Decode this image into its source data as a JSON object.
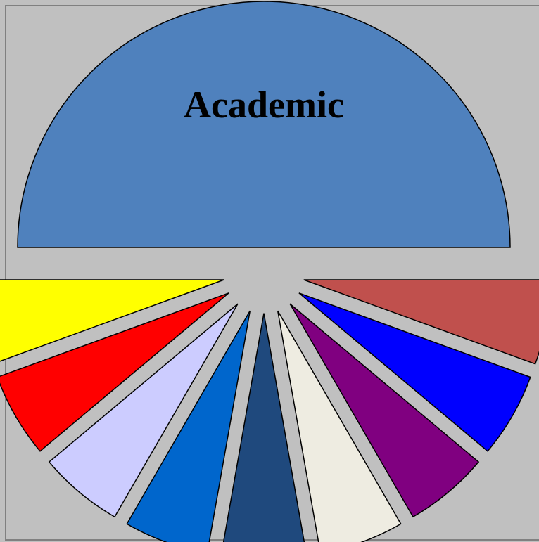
{
  "chart_data": {
    "type": "pie",
    "title": "",
    "exploded": true,
    "start_angle_deg": 180,
    "slices": [
      {
        "label": "Academic",
        "value": 47.7,
        "color": "#4f81bd"
      },
      {
        "label": "",
        "value": 5.3,
        "color": "#c0504d"
      },
      {
        "label": "",
        "value": 5.3,
        "color": "#0000ff"
      },
      {
        "label": "",
        "value": 5.3,
        "color": "#800080"
      },
      {
        "label": "",
        "value": 5.3,
        "color": "#eeece1"
      },
      {
        "label": "",
        "value": 5.3,
        "color": "#1f497d"
      },
      {
        "label": "",
        "value": 5.3,
        "color": "#0066cc"
      },
      {
        "label": "",
        "value": 5.3,
        "color": "#ccccff"
      },
      {
        "label": "",
        "value": 5.3,
        "color": "#ff0000"
      },
      {
        "label": "",
        "value": 5.3,
        "color": "#ffff00"
      }
    ],
    "background_color": "#c0c0c0",
    "border_color": "#808080",
    "legend": "none"
  }
}
